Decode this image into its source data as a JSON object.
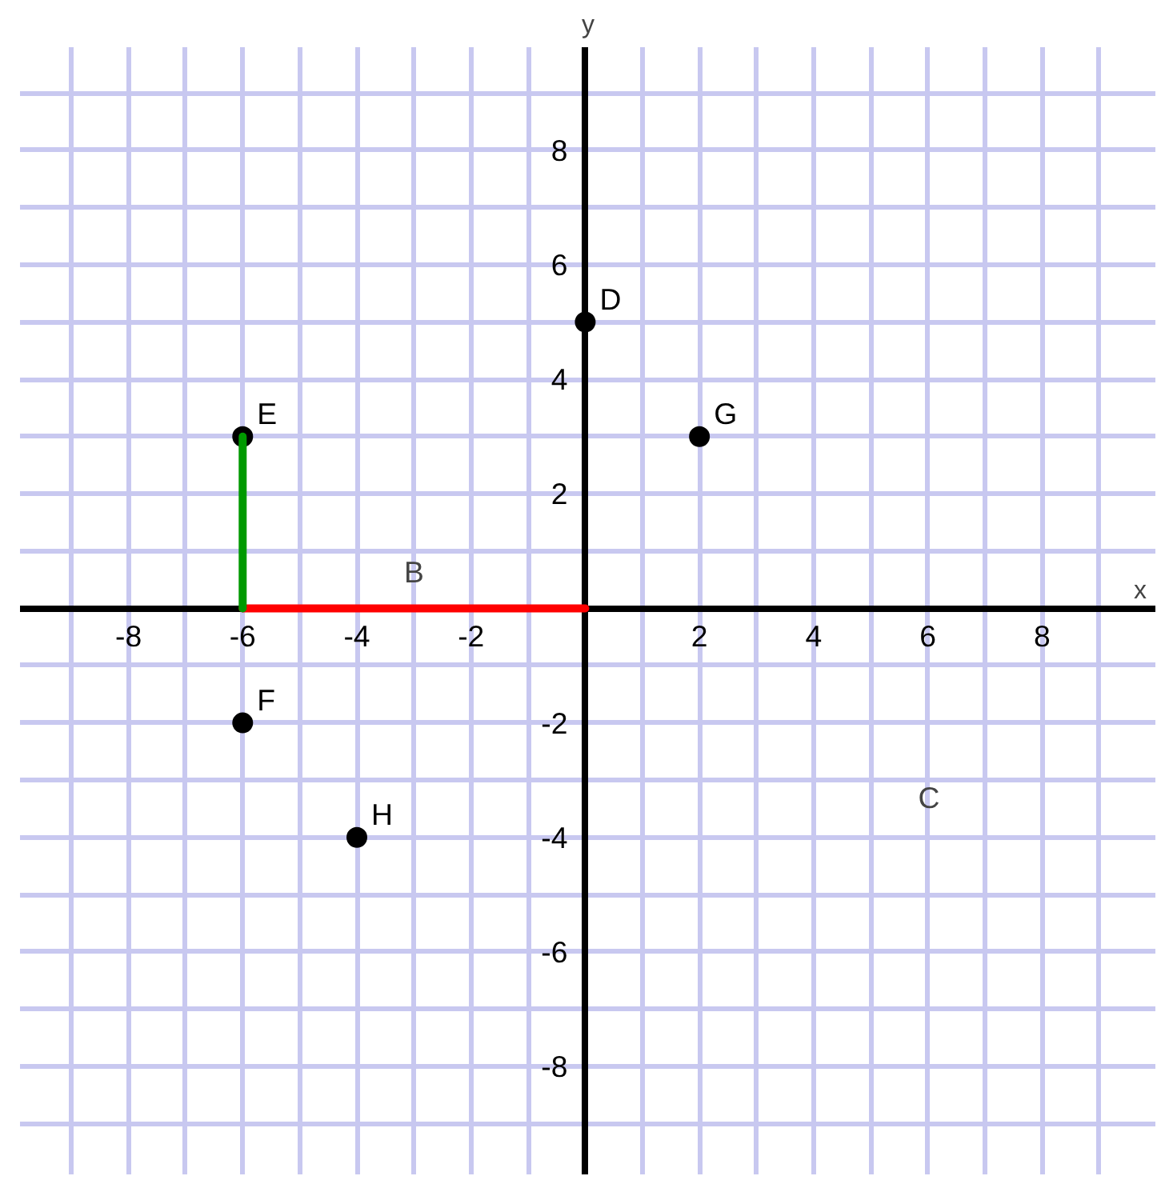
{
  "chart_data": {
    "type": "scatter",
    "xlabel": "x",
    "ylabel": "y",
    "xlim": [
      -9.9,
      10
    ],
    "ylim": [
      -9.9,
      9.8
    ],
    "xticks": [
      {
        "value": -9,
        "label": null
      },
      -8,
      {
        "value": -7,
        "label": null
      },
      -6,
      {
        "value": -5,
        "label": null
      },
      -4,
      {
        "value": -3,
        "label": null
      },
      -2,
      {
        "value": -1,
        "label": null
      },
      {
        "value": 0,
        "label": null
      },
      {
        "value": 1,
        "label": null
      },
      2,
      {
        "value": 3,
        "label": null
      },
      4,
      {
        "value": 5,
        "label": null
      },
      6,
      {
        "value": 7,
        "label": null
      },
      8,
      {
        "value": 9,
        "label": null
      }
    ],
    "yticks": [
      {
        "value": -9,
        "label": null
      },
      -8,
      {
        "value": -7,
        "label": null
      },
      -6,
      {
        "value": -5,
        "label": null
      },
      -4,
      {
        "value": -3,
        "label": null
      },
      -2,
      {
        "value": -1,
        "label": null
      },
      {
        "value": 0,
        "label": null
      },
      {
        "value": 1,
        "label": null
      },
      2,
      {
        "value": 3,
        "label": null
      },
      4,
      {
        "value": 5,
        "label": null
      },
      6,
      {
        "value": 7,
        "label": null
      },
      8,
      {
        "value": 9,
        "label": null
      }
    ],
    "grid": true,
    "marker": "circle",
    "series": [
      {
        "name": "D",
        "color": "#000000",
        "x": [
          0
        ],
        "values": [
          5
        ]
      },
      {
        "name": "G",
        "color": "#000000",
        "x": [
          2
        ],
        "values": [
          3
        ]
      },
      {
        "name": "E",
        "color": "#000000",
        "x": [
          -6
        ],
        "values": [
          3
        ]
      },
      {
        "name": "F",
        "color": "#000000",
        "x": [
          -6
        ],
        "values": [
          -2
        ]
      },
      {
        "name": "H",
        "color": "#000000",
        "x": [
          -4
        ],
        "values": [
          -4
        ]
      },
      {
        "type": "line",
        "name": "B",
        "marker": "none",
        "color": "#ff0000",
        "x": [
          0,
          -6
        ],
        "values": [
          0,
          0
        ]
      },
      {
        "type": "line",
        "marker": "none",
        "color": "#009900",
        "x": [
          -6,
          -6
        ],
        "values": [
          0,
          3
        ]
      }
    ],
    "annotations": [
      "C"
    ]
  }
}
